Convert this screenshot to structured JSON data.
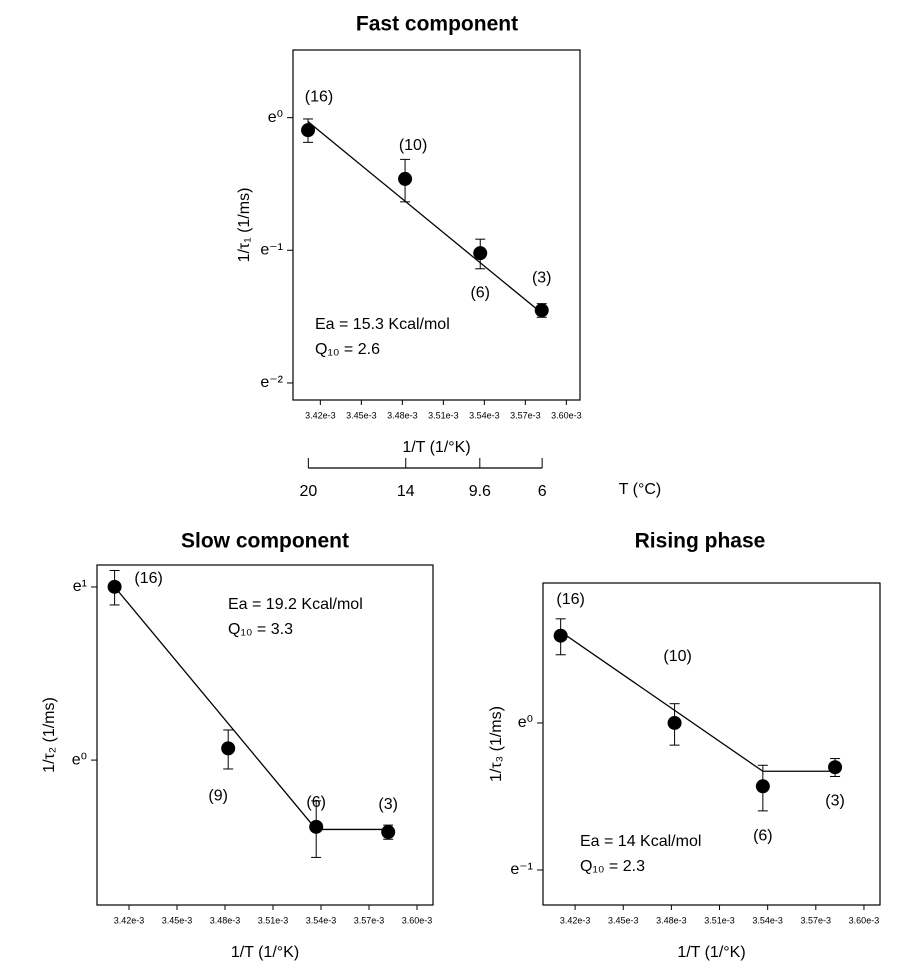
{
  "chart_data": [
    {
      "type": "scatter",
      "title": "Fast component",
      "xlabel": "1/T (1/°K)",
      "ylabel": "1/τ₁ (1/ms)",
      "x": [
        0.003411,
        0.003482,
        0.003537,
        0.003582
      ],
      "values": [
        0.91,
        0.63,
        0.36,
        0.234
      ],
      "errors": [
        0.08,
        0.1,
        0.04,
        0.012
      ],
      "point_labels": [
        "(16)",
        "(10)",
        "(6)",
        "(3)"
      ],
      "annotations": [
        "Ea = 15.3 Kcal/mol",
        "Q₁₀ = 2.6"
      ],
      "fit": {
        "x": [
          0.003411,
          0.003582
        ],
        "values": [
          0.97,
          0.229
        ]
      },
      "color": "#000000",
      "log_y": true,
      "xlim": [
        0.0034,
        0.00361
      ],
      "xticks": [
        {
          "value": 0.00342,
          "label": "3.42e-3"
        },
        {
          "value": 0.00345,
          "label": "3.45e-3"
        },
        {
          "value": 0.00348,
          "label": "3.48e-3"
        },
        {
          "value": 0.00351,
          "label": "3.51e-3"
        },
        {
          "value": 0.00354,
          "label": "3.54e-3"
        },
        {
          "value": 0.00357,
          "label": "3.57e-3"
        },
        {
          "value": 0.0036,
          "label": "3.60e-3"
        }
      ],
      "ylim": [
        0.119,
        1.665
      ],
      "yticks": [
        {
          "value": 1,
          "label": "e⁰"
        },
        {
          "value": 0.3679,
          "label": "e⁻¹"
        },
        {
          "value": 0.1353,
          "label": "e⁻²"
        }
      ],
      "t_axis": {
        "label": "T (°C)",
        "ticks": [
          20,
          14,
          9.6,
          6
        ]
      }
    },
    {
      "type": "scatter",
      "title": "Slow component",
      "xlabel": "1/T (1/°K)",
      "ylabel": "1/τ₂ (1/ms)",
      "x": [
        0.003411,
        0.003482,
        0.003537,
        0.003582
      ],
      "values": [
        2.72,
        1.07,
        0.68,
        0.66
      ],
      "errors": [
        0.27,
        0.12,
        0.11,
        0.027
      ],
      "point_labels": [
        "(16)",
        "(9)",
        "(6)",
        "(3)"
      ],
      "annotations": [
        "Ea = 19.2 Kcal/mol",
        "Q₁₀ = 3.3"
      ],
      "fit": {
        "x": [
          0.003411,
          0.003537,
          0.003582
        ],
        "values": [
          2.72,
          0.67,
          0.67
        ]
      },
      "color": "#000000",
      "log_y": true,
      "xlim": [
        0.0034,
        0.00361
      ],
      "xticks": [
        {
          "value": 0.00342,
          "label": "3.42e-3"
        },
        {
          "value": 0.00345,
          "label": "3.45e-3"
        },
        {
          "value": 0.00348,
          "label": "3.48e-3"
        },
        {
          "value": 0.00351,
          "label": "3.51e-3"
        },
        {
          "value": 0.00354,
          "label": "3.54e-3"
        },
        {
          "value": 0.00357,
          "label": "3.57e-3"
        },
        {
          "value": 0.0036,
          "label": "3.60e-3"
        }
      ],
      "ylim": [
        0.433,
        3.086
      ],
      "yticks": [
        {
          "value": 2.7183,
          "label": "e¹"
        },
        {
          "value": 1,
          "label": "e⁰"
        }
      ]
    },
    {
      "type": "scatter",
      "title": "Rising phase",
      "xlabel": "1/T (1/°K)",
      "ylabel": "1/τ₃ (1/ms)",
      "x": [
        0.003411,
        0.003482,
        0.003537,
        0.003582
      ],
      "values": [
        1.81,
        1.0,
        0.65,
        0.74
      ],
      "errors": [
        0.22,
        0.14,
        0.1,
        0.045
      ],
      "point_labels": [
        "(16)",
        "(10)",
        "(6)",
        "(3)"
      ],
      "annotations": [
        "Ea = 14 Kcal/mol",
        "Q₁₀ = 2.3"
      ],
      "fit": {
        "x": [
          0.003411,
          0.003537,
          0.003582
        ],
        "values": [
          1.86,
          0.72,
          0.72
        ]
      },
      "color": "#000000",
      "log_y": true,
      "xlim": [
        0.0034,
        0.00361
      ],
      "xticks": [
        {
          "value": 0.00342,
          "label": "3.42e-3"
        },
        {
          "value": 0.00345,
          "label": "3.45e-3"
        },
        {
          "value": 0.00348,
          "label": "3.48e-3"
        },
        {
          "value": 0.00351,
          "label": "3.51e-3"
        },
        {
          "value": 0.00354,
          "label": "3.54e-3"
        },
        {
          "value": 0.00357,
          "label": "3.57e-3"
        },
        {
          "value": 0.0036,
          "label": "3.60e-3"
        }
      ],
      "ylim": [
        0.29,
        2.59
      ],
      "yticks": [
        {
          "value": 1,
          "label": "e⁰"
        },
        {
          "value": 0.3679,
          "label": "e⁻¹"
        }
      ]
    }
  ]
}
